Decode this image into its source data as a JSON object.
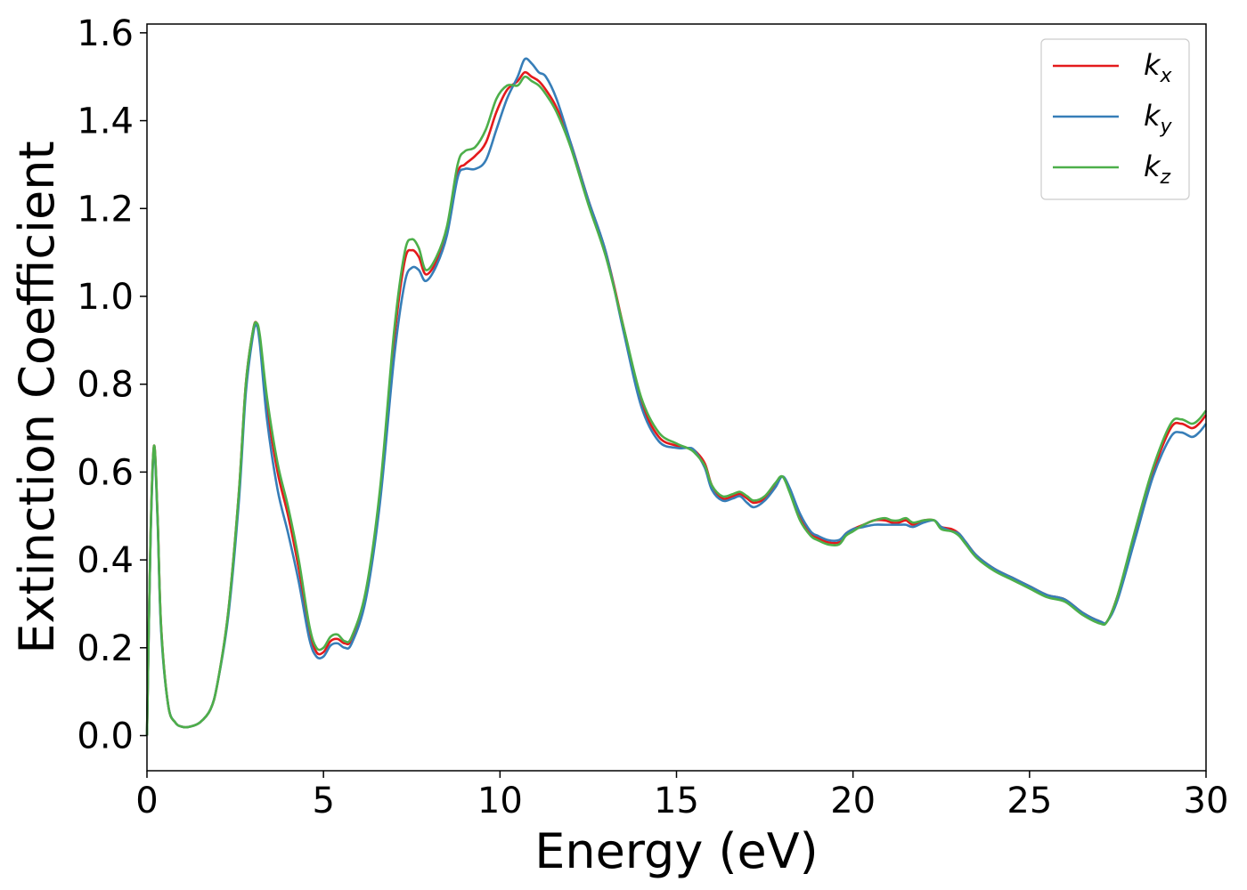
{
  "chart_data": {
    "type": "line",
    "title": "",
    "xlabel": "Energy (eV)",
    "ylabel": "Extinction Coefficient",
    "xlim": [
      0,
      30
    ],
    "ylim": [
      -0.08,
      1.62
    ],
    "xticks": [
      0,
      5,
      10,
      15,
      20,
      25,
      30
    ],
    "xtick_labels": [
      "0",
      "5",
      "10",
      "15",
      "20",
      "25",
      "30"
    ],
    "yticks": [
      0.0,
      0.2,
      0.4,
      0.6,
      0.8,
      1.0,
      1.2,
      1.4,
      1.6
    ],
    "ytick_labels": [
      "0.0",
      "0.2",
      "0.4",
      "0.6",
      "0.8",
      "1.0",
      "1.2",
      "1.4",
      "1.6"
    ],
    "grid": false,
    "legend_position": "top-right",
    "series": [
      {
        "name": "k_x",
        "label_base": "k",
        "label_sub": "x",
        "color": "#e41a1c",
        "x": [
          0,
          0.1,
          0.2,
          0.3,
          0.4,
          0.6,
          0.8,
          1.0,
          1.2,
          1.5,
          1.8,
          2.0,
          2.3,
          2.6,
          2.8,
          3.0,
          3.1,
          3.2,
          3.4,
          3.7,
          4.0,
          4.3,
          4.6,
          4.8,
          5.0,
          5.2,
          5.4,
          5.6,
          5.8,
          6.2,
          6.6,
          7.0,
          7.3,
          7.5,
          7.7,
          7.9,
          8.2,
          8.5,
          8.8,
          9.0,
          9.3,
          9.6,
          9.9,
          10.2,
          10.5,
          10.7,
          10.9,
          11.1,
          11.3,
          11.6,
          12.0,
          12.5,
          13.0,
          13.5,
          14.0,
          14.5,
          15.0,
          15.3,
          15.5,
          15.8,
          16.0,
          16.3,
          16.6,
          16.8,
          17.0,
          17.2,
          17.5,
          17.8,
          18.0,
          18.2,
          18.5,
          18.8,
          19.0,
          19.3,
          19.6,
          19.8,
          20.0,
          20.3,
          20.6,
          20.9,
          21.1,
          21.3,
          21.5,
          21.7,
          22.0,
          22.3,
          22.5,
          22.8,
          23.0,
          23.2,
          23.5,
          24.0,
          24.5,
          25.0,
          25.5,
          26.0,
          26.5,
          27.0,
          27.2,
          27.5,
          28.0,
          28.5,
          29.0,
          29.3,
          29.6,
          29.8,
          30.0
        ],
        "y": [
          0.0,
          0.45,
          0.66,
          0.5,
          0.25,
          0.07,
          0.03,
          0.02,
          0.02,
          0.03,
          0.06,
          0.12,
          0.28,
          0.55,
          0.8,
          0.92,
          0.94,
          0.9,
          0.75,
          0.6,
          0.5,
          0.38,
          0.24,
          0.19,
          0.19,
          0.215,
          0.22,
          0.21,
          0.22,
          0.32,
          0.55,
          0.9,
          1.08,
          1.105,
          1.09,
          1.05,
          1.08,
          1.15,
          1.28,
          1.3,
          1.32,
          1.35,
          1.42,
          1.47,
          1.49,
          1.51,
          1.5,
          1.49,
          1.47,
          1.43,
          1.35,
          1.22,
          1.1,
          0.93,
          0.76,
          0.68,
          0.66,
          0.655,
          0.65,
          0.62,
          0.57,
          0.54,
          0.545,
          0.55,
          0.54,
          0.53,
          0.54,
          0.57,
          0.59,
          0.56,
          0.5,
          0.46,
          0.45,
          0.44,
          0.44,
          0.46,
          0.47,
          0.48,
          0.49,
          0.49,
          0.485,
          0.485,
          0.49,
          0.48,
          0.49,
          0.49,
          0.475,
          0.47,
          0.46,
          0.44,
          0.41,
          0.38,
          0.36,
          0.34,
          0.32,
          0.31,
          0.28,
          0.26,
          0.26,
          0.32,
          0.46,
          0.6,
          0.7,
          0.71,
          0.7,
          0.71,
          0.73
        ]
      },
      {
        "name": "k_y",
        "label_base": "k",
        "label_sub": "y",
        "color": "#377eb8",
        "x": [
          0,
          0.1,
          0.2,
          0.3,
          0.4,
          0.6,
          0.8,
          1.0,
          1.2,
          1.5,
          1.8,
          2.0,
          2.3,
          2.6,
          2.8,
          3.0,
          3.1,
          3.2,
          3.4,
          3.7,
          4.0,
          4.3,
          4.6,
          4.8,
          5.0,
          5.2,
          5.4,
          5.6,
          5.8,
          6.2,
          6.6,
          7.0,
          7.3,
          7.5,
          7.7,
          7.9,
          8.2,
          8.5,
          8.8,
          9.0,
          9.3,
          9.6,
          9.9,
          10.2,
          10.5,
          10.7,
          10.9,
          11.1,
          11.3,
          11.6,
          12.0,
          12.5,
          13.0,
          13.5,
          14.0,
          14.5,
          15.0,
          15.3,
          15.5,
          15.8,
          16.0,
          16.3,
          16.6,
          16.8,
          17.0,
          17.2,
          17.5,
          17.8,
          18.0,
          18.2,
          18.5,
          18.8,
          19.0,
          19.3,
          19.6,
          19.8,
          20.0,
          20.3,
          20.6,
          20.9,
          21.1,
          21.3,
          21.5,
          21.7,
          22.0,
          22.3,
          22.5,
          22.8,
          23.0,
          23.2,
          23.5,
          24.0,
          24.5,
          25.0,
          25.5,
          26.0,
          26.5,
          27.0,
          27.2,
          27.5,
          28.0,
          28.5,
          29.0,
          29.3,
          29.6,
          29.8,
          30.0
        ],
        "y": [
          0.0,
          0.44,
          0.65,
          0.49,
          0.24,
          0.07,
          0.03,
          0.02,
          0.02,
          0.03,
          0.06,
          0.12,
          0.27,
          0.53,
          0.78,
          0.91,
          0.935,
          0.89,
          0.72,
          0.56,
          0.46,
          0.35,
          0.22,
          0.18,
          0.18,
          0.205,
          0.21,
          0.2,
          0.21,
          0.31,
          0.53,
          0.86,
          1.03,
          1.065,
          1.06,
          1.035,
          1.07,
          1.14,
          1.27,
          1.29,
          1.29,
          1.31,
          1.38,
          1.45,
          1.5,
          1.54,
          1.53,
          1.51,
          1.5,
          1.45,
          1.35,
          1.22,
          1.1,
          0.92,
          0.75,
          0.67,
          0.655,
          0.655,
          0.65,
          0.61,
          0.56,
          0.535,
          0.54,
          0.545,
          0.53,
          0.52,
          0.535,
          0.565,
          0.59,
          0.565,
          0.505,
          0.465,
          0.455,
          0.445,
          0.445,
          0.46,
          0.47,
          0.475,
          0.48,
          0.48,
          0.48,
          0.48,
          0.48,
          0.475,
          0.485,
          0.49,
          0.475,
          0.465,
          0.46,
          0.44,
          0.41,
          0.38,
          0.36,
          0.34,
          0.32,
          0.31,
          0.28,
          0.26,
          0.26,
          0.31,
          0.45,
          0.59,
          0.68,
          0.69,
          0.68,
          0.69,
          0.71
        ]
      },
      {
        "name": "k_z",
        "label_base": "k",
        "label_sub": "z",
        "color": "#4daf4a",
        "x": [
          0,
          0.1,
          0.2,
          0.3,
          0.4,
          0.6,
          0.8,
          1.0,
          1.2,
          1.5,
          1.8,
          2.0,
          2.3,
          2.6,
          2.8,
          3.0,
          3.1,
          3.2,
          3.4,
          3.7,
          4.0,
          4.3,
          4.6,
          4.8,
          5.0,
          5.2,
          5.4,
          5.6,
          5.8,
          6.2,
          6.6,
          7.0,
          7.3,
          7.5,
          7.7,
          7.9,
          8.2,
          8.5,
          8.8,
          9.0,
          9.3,
          9.6,
          9.9,
          10.2,
          10.5,
          10.7,
          10.9,
          11.1,
          11.3,
          11.6,
          12.0,
          12.5,
          13.0,
          13.5,
          14.0,
          14.5,
          15.0,
          15.3,
          15.5,
          15.8,
          16.0,
          16.3,
          16.6,
          16.8,
          17.0,
          17.2,
          17.5,
          17.8,
          18.0,
          18.2,
          18.5,
          18.8,
          19.0,
          19.3,
          19.6,
          19.8,
          20.0,
          20.3,
          20.6,
          20.9,
          21.1,
          21.3,
          21.5,
          21.7,
          22.0,
          22.3,
          22.5,
          22.8,
          23.0,
          23.2,
          23.5,
          24.0,
          24.5,
          25.0,
          25.5,
          26.0,
          26.5,
          27.0,
          27.2,
          27.5,
          28.0,
          28.5,
          29.0,
          29.3,
          29.6,
          29.8,
          30.0
        ],
        "y": [
          0.0,
          0.45,
          0.66,
          0.5,
          0.25,
          0.07,
          0.03,
          0.02,
          0.02,
          0.03,
          0.06,
          0.12,
          0.28,
          0.55,
          0.8,
          0.92,
          0.94,
          0.91,
          0.77,
          0.62,
          0.52,
          0.4,
          0.25,
          0.2,
          0.2,
          0.225,
          0.23,
          0.215,
          0.225,
          0.33,
          0.56,
          0.92,
          1.1,
          1.13,
          1.11,
          1.06,
          1.09,
          1.16,
          1.3,
          1.33,
          1.34,
          1.38,
          1.45,
          1.48,
          1.48,
          1.5,
          1.49,
          1.48,
          1.46,
          1.42,
          1.34,
          1.21,
          1.09,
          0.93,
          0.77,
          0.69,
          0.665,
          0.655,
          0.645,
          0.615,
          0.57,
          0.545,
          0.55,
          0.555,
          0.545,
          0.535,
          0.545,
          0.575,
          0.59,
          0.555,
          0.49,
          0.455,
          0.445,
          0.435,
          0.435,
          0.455,
          0.465,
          0.48,
          0.49,
          0.495,
          0.49,
          0.49,
          0.495,
          0.485,
          0.49,
          0.49,
          0.47,
          0.465,
          0.455,
          0.435,
          0.405,
          0.375,
          0.355,
          0.335,
          0.315,
          0.305,
          0.275,
          0.255,
          0.26,
          0.32,
          0.47,
          0.61,
          0.71,
          0.72,
          0.71,
          0.72,
          0.74
        ]
      }
    ]
  }
}
